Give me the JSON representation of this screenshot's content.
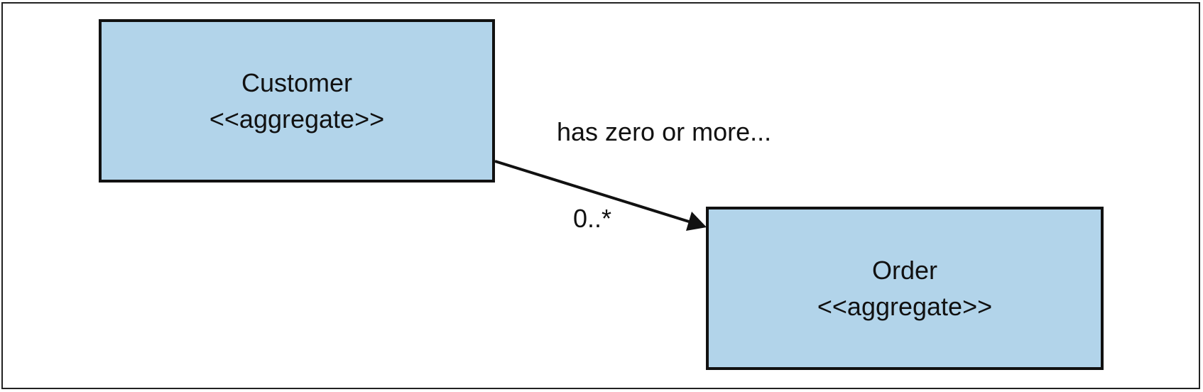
{
  "diagram": {
    "nodes": [
      {
        "name": "Customer",
        "stereotype": "<<aggregate>>"
      },
      {
        "name": "Order",
        "stereotype": "<<aggregate>>"
      }
    ],
    "edge": {
      "from": "Customer",
      "to": "Order",
      "label": "has zero or more...",
      "multiplicity": "0..*"
    }
  },
  "colors": {
    "box_fill": "#b2d4ea",
    "stroke": "#111111"
  }
}
